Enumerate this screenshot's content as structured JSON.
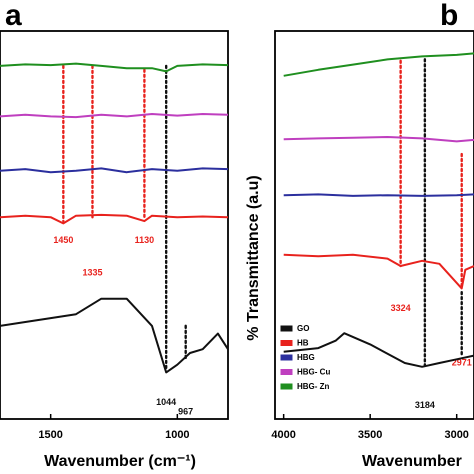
{
  "chart_data": [
    {
      "panel": "a",
      "type": "line",
      "xlabel": "Wavenumber (cm⁻¹)",
      "ylabel": "",
      "xlim": [
        1700,
        800
      ],
      "x_ticks": [
        "1500",
        "1000"
      ],
      "series_colors": [
        "#111111",
        "#e8221d",
        "#2b2f9e",
        "#bf3fbf",
        "#1f8f1f"
      ],
      "series": [
        {
          "x": [
            1700,
            1600,
            1500,
            1400,
            1300,
            1200,
            1100,
            1044,
            1000,
            950,
            900,
            840,
            800
          ],
          "values": [
            1.2,
            1.25,
            1.3,
            1.35,
            1.55,
            1.55,
            1.2,
            0.6,
            0.7,
            0.85,
            0.9,
            1.1,
            0.9
          ]
        },
        {
          "x": [
            1700,
            1600,
            1500,
            1450,
            1400,
            1300,
            1200,
            1130,
            1100,
            1000,
            900,
            800
          ],
          "values": [
            2.6,
            2.62,
            2.6,
            2.52,
            2.62,
            2.63,
            2.62,
            2.55,
            2.62,
            2.6,
            2.61,
            2.6
          ]
        },
        {
          "x": [
            1700,
            1600,
            1500,
            1400,
            1300,
            1200,
            1100,
            1000,
            900,
            800
          ],
          "values": [
            3.2,
            3.22,
            3.18,
            3.2,
            3.23,
            3.18,
            3.22,
            3.2,
            3.23,
            3.22
          ]
        },
        {
          "x": [
            1700,
            1600,
            1500,
            1400,
            1300,
            1200,
            1100,
            1000,
            900,
            800
          ],
          "values": [
            3.9,
            3.92,
            3.9,
            3.89,
            3.92,
            3.9,
            3.93,
            3.91,
            3.93,
            3.92
          ]
        },
        {
          "x": [
            1700,
            1600,
            1500,
            1400,
            1300,
            1200,
            1100,
            1044,
            1000,
            900,
            800
          ],
          "values": [
            4.55,
            4.57,
            4.56,
            4.58,
            4.55,
            4.52,
            4.52,
            4.48,
            4.55,
            4.57,
            4.56
          ]
        }
      ],
      "annotations": [
        {
          "label": "1450",
          "x": 1450,
          "color": "#e8221d",
          "line_top": 4.55,
          "line_bottom": 2.55,
          "label_y": 2.27
        },
        {
          "label": "1335",
          "x": 1335,
          "color": "#e8221d",
          "line_top": 4.55,
          "line_bottom": 2.6,
          "label_y": 1.85
        },
        {
          "label": "1130",
          "x": 1130,
          "color": "#e8221d",
          "line_top": 4.5,
          "line_bottom": 2.58,
          "label_y": 2.27
        },
        {
          "label": "1044",
          "x": 1044,
          "color": "#111111",
          "line_top": 4.55,
          "line_bottom": 0.65,
          "label_y": 0.18
        },
        {
          "label": "967",
          "x": 967,
          "color": "#111111",
          "line_top": 1.2,
          "line_bottom": 0.75,
          "label_y": 0.06
        }
      ]
    },
    {
      "panel": "b",
      "type": "line",
      "xlabel": "Wavenumber",
      "ylabel": "% Transmittance (a.u)",
      "xlim": [
        4050,
        2900
      ],
      "x_ticks": [
        "4000",
        "3500",
        "3000"
      ],
      "series": [
        {
          "name": "GO",
          "color": "#111111",
          "x": [
            4000,
            3800,
            3700,
            3650,
            3500,
            3300,
            3200,
            3100,
            3000,
            2900
          ],
          "values": [
            0.9,
            0.95,
            1.05,
            1.15,
            1.0,
            0.75,
            0.7,
            0.75,
            0.8,
            0.85
          ]
        },
        {
          "name": "HB",
          "color": "#e8221d",
          "x": [
            4000,
            3800,
            3600,
            3400,
            3324,
            3200,
            3100,
            2971,
            2950,
            2900
          ],
          "values": [
            2.2,
            2.18,
            2.2,
            2.15,
            2.05,
            2.12,
            2.08,
            1.75,
            2.0,
            2.05
          ]
        },
        {
          "name": "HBG",
          "color": "#2b2f9e",
          "x": [
            4000,
            3800,
            3600,
            3400,
            3200,
            3000,
            2900
          ],
          "values": [
            3.0,
            3.01,
            2.99,
            3.0,
            2.99,
            3.0,
            3.01
          ]
        },
        {
          "name": "HBG- Cu",
          "color": "#bf3fbf",
          "x": [
            4000,
            3800,
            3600,
            3400,
            3200,
            3000,
            2900
          ],
          "values": [
            3.75,
            3.76,
            3.77,
            3.78,
            3.76,
            3.72,
            3.74
          ]
        },
        {
          "name": "HBG- Zn",
          "color": "#1f8f1f",
          "x": [
            4000,
            3800,
            3600,
            3400,
            3200,
            3000,
            2900
          ],
          "values": [
            4.6,
            4.68,
            4.75,
            4.82,
            4.86,
            4.88,
            4.9
          ]
        }
      ],
      "annotations": [
        {
          "label": "3324",
          "x": 3324,
          "color": "#e8221d",
          "line_top": 4.8,
          "line_bottom": 2.05,
          "label_y": 1.45
        },
        {
          "label": "3184",
          "x": 3184,
          "color": "#111111",
          "line_top": 4.82,
          "line_bottom": 0.72,
          "label_y": 0.15
        },
        {
          "label": "2971",
          "x": 2971,
          "color": "#e8221d",
          "line_top": 3.55,
          "line_bottom": 1.75,
          "label_y": 0.72
        },
        {
          "label": "",
          "x": 2971,
          "color": "#111111",
          "line_top": 1.7,
          "line_bottom": 0.85,
          "label_y": 0
        }
      ]
    }
  ]
}
